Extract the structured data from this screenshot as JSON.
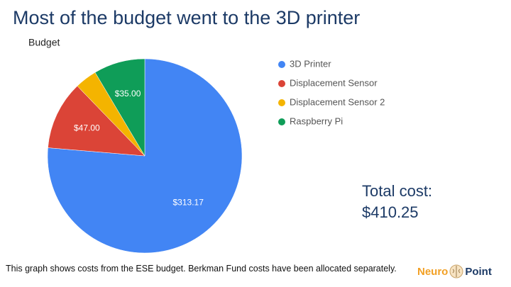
{
  "slide": {
    "title": "Most of the budget went to the 3D printer",
    "total_label": "Total cost:",
    "total_value": "$410.25",
    "note": "This graph shows costs from the ESE budget. Berkman Fund costs have been allocated separately.",
    "logo": [
      "Neuro",
      "Point"
    ]
  },
  "chart_data": {
    "type": "pie",
    "title": "Budget",
    "categories": [
      "3D Printer",
      "Displacement Sensor",
      "Displacement Sensor 2",
      "Raspberry Pi"
    ],
    "values": [
      313.17,
      47.0,
      15.08,
      35.0
    ],
    "value_labels": [
      "$313.17",
      "$47.00",
      null,
      "$35.00"
    ],
    "colors": [
      "#4285f4",
      "#db4437",
      "#f4b400",
      "#0f9d58"
    ],
    "legend": "right"
  }
}
